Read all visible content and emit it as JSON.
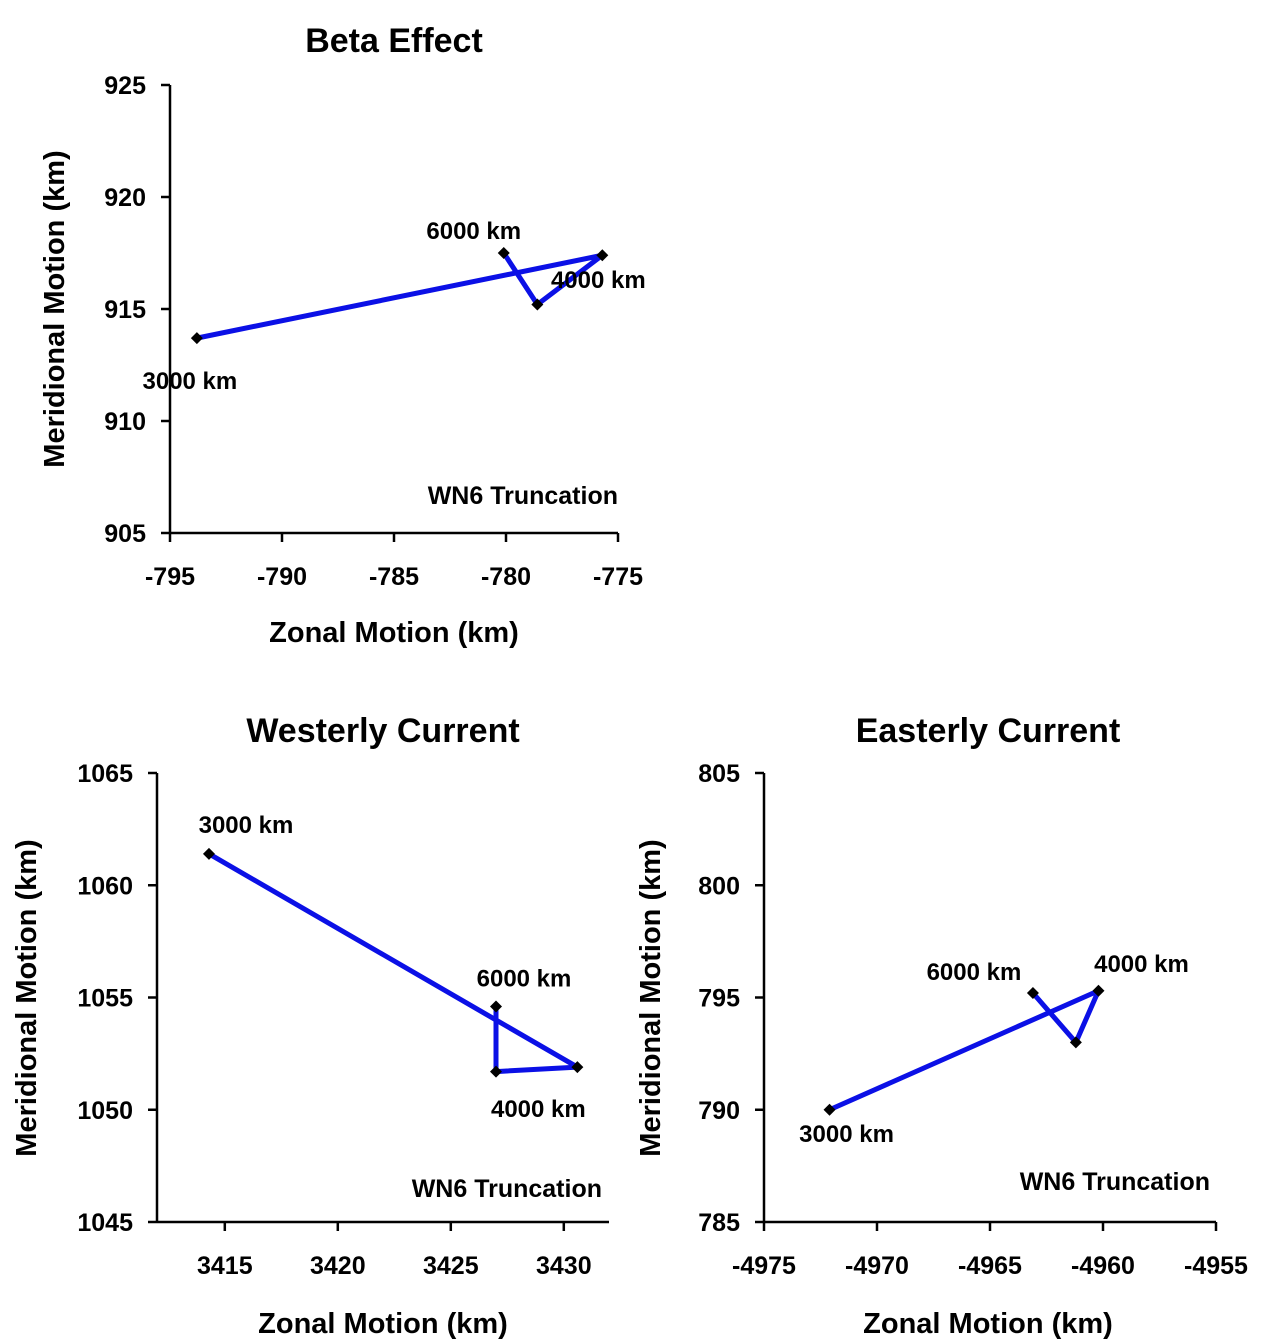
{
  "chart_data": [
    {
      "type": "line",
      "title": "Beta Effect",
      "xlabel": "Zonal Motion (km)",
      "ylabel": "Meridional Motion (km)",
      "xlim": [
        -795,
        -775
      ],
      "ylim": [
        905,
        925
      ],
      "xticks": [
        -795,
        -790,
        -785,
        -780,
        -775
      ],
      "yticks": [
        905,
        910,
        915,
        920,
        925
      ],
      "annotation": "WN6 Truncation",
      "grid": false,
      "series": [
        {
          "color": "#0b10e6",
          "points": [
            {
              "x": -793.8,
              "y": 913.7,
              "label": "3000 km"
            },
            {
              "x": -775.7,
              "y": 917.4,
              "label": "4000 km"
            },
            {
              "x": -778.6,
              "y": 915.2,
              "label": ""
            },
            {
              "x": -780.1,
              "y": 917.5,
              "label": "6000 km"
            }
          ]
        }
      ]
    },
    {
      "type": "line",
      "title": "Westerly Current",
      "xlabel": "Zonal Motion (km)",
      "ylabel": "Meridional Motion (km)",
      "xlim": [
        3412,
        3432
      ],
      "ylim": [
        1045,
        1065
      ],
      "xticks": [
        3415,
        3420,
        3425,
        3430
      ],
      "yticks": [
        1045,
        1050,
        1055,
        1060,
        1065
      ],
      "annotation": "WN6 Truncation",
      "grid": false,
      "series": [
        {
          "color": "#0b10e6",
          "points": [
            {
              "x": 3414.3,
              "y": 1061.4,
              "label": "3000 km"
            },
            {
              "x": 3430.6,
              "y": 1051.9,
              "label": "4000 km"
            },
            {
              "x": 3427.0,
              "y": 1051.7,
              "label": ""
            },
            {
              "x": 3427.0,
              "y": 1054.6,
              "label": "6000 km"
            }
          ]
        }
      ]
    },
    {
      "type": "line",
      "title": "Easterly Current",
      "xlabel": "Zonal Motion (km)",
      "ylabel": "Meridional Motion (km)",
      "xlim": [
        -4975,
        -4955
      ],
      "ylim": [
        785,
        805
      ],
      "xticks": [
        -4975,
        -4970,
        -4965,
        -4960,
        -4955
      ],
      "yticks": [
        785,
        790,
        795,
        800,
        805
      ],
      "annotation": "WN6 Truncation",
      "grid": false,
      "series": [
        {
          "color": "#0b10e6",
          "points": [
            {
              "x": -4972.1,
              "y": 790.0,
              "label": "3000 km"
            },
            {
              "x": -4960.2,
              "y": 795.3,
              "label": "4000 km"
            },
            {
              "x": -4961.2,
              "y": 793.0,
              "label": ""
            },
            {
              "x": -4963.1,
              "y": 795.2,
              "label": "6000 km"
            }
          ]
        }
      ]
    }
  ]
}
